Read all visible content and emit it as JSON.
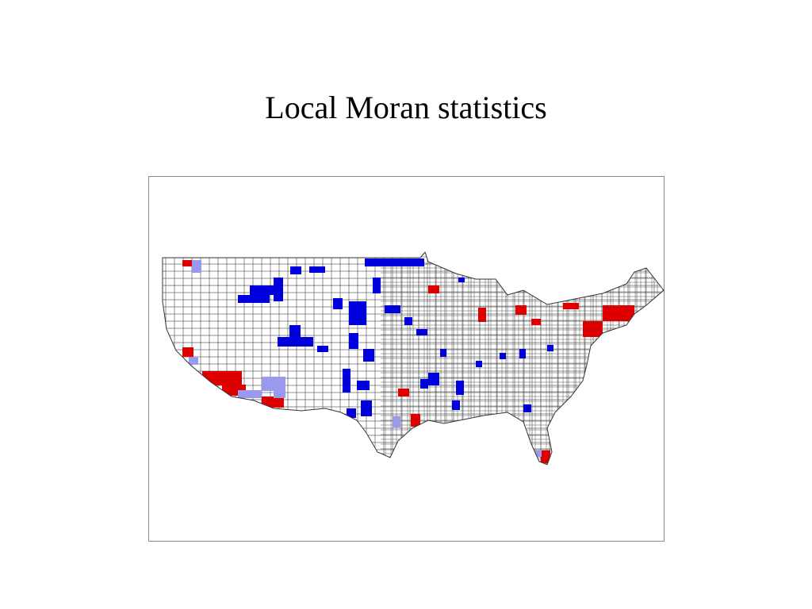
{
  "title": "Local Moran statistics"
}
